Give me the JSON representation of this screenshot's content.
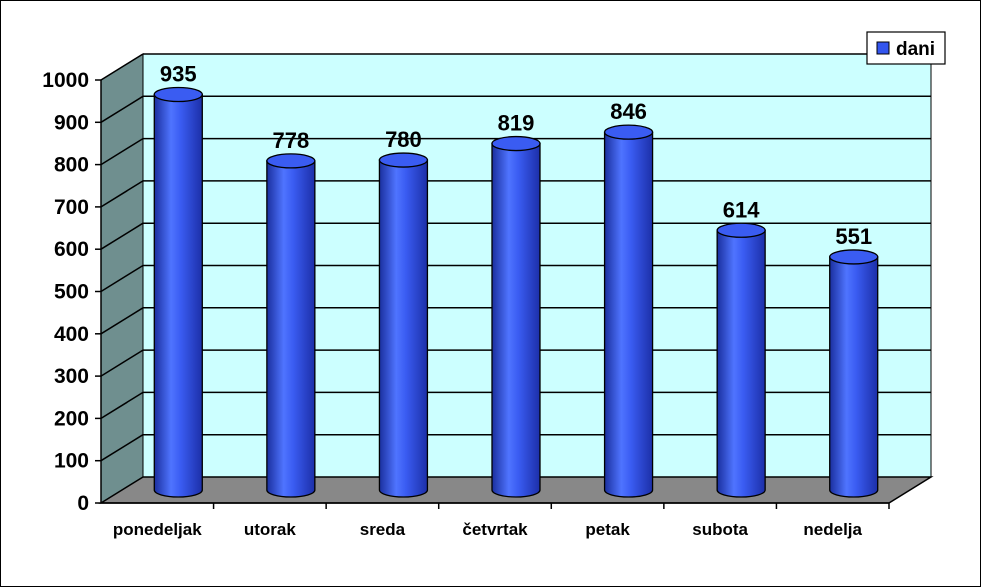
{
  "chart_data": {
    "type": "bar",
    "style": "3d-cylinder",
    "categories": [
      "ponedeljak",
      "utorak",
      "sreda",
      "četvrtak",
      "petak",
      "subota",
      "nedelja"
    ],
    "series": [
      {
        "name": "dani",
        "values": [
          935,
          778,
          780,
          819,
          846,
          614,
          551
        ]
      }
    ],
    "ylim": [
      0,
      1000
    ],
    "yticks": [
      "0",
      "100",
      "200",
      "300",
      "400",
      "500",
      "600",
      "700",
      "800",
      "900",
      "1000"
    ],
    "grid": true,
    "legend_position": "top-right",
    "data_labels": true
  },
  "colors": {
    "bar": "#3355ee",
    "wall": "#ccffff",
    "side_wall": "#6f8f8f",
    "floor": "#888888",
    "gridline": "#000000"
  }
}
